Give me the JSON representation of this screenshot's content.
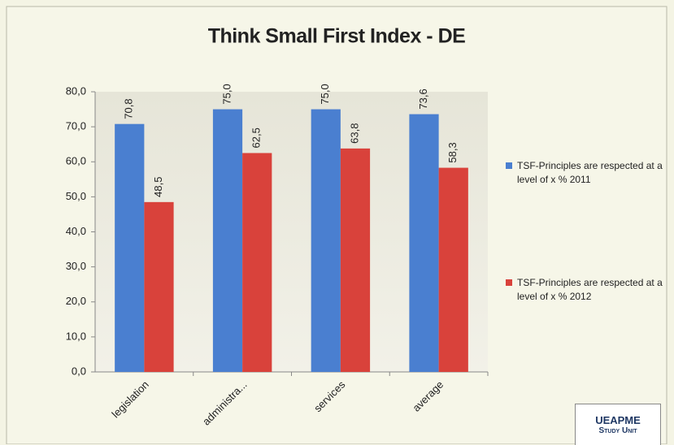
{
  "chart_data": {
    "type": "bar",
    "title": "Think Small First Index - DE",
    "categories": [
      "legislation",
      "administra...",
      "services",
      "average"
    ],
    "series": [
      {
        "name": "TSF-Principles are respected at a level of x % 2011",
        "color": "#4a7fd0",
        "values": [
          70.8,
          75.0,
          75.0,
          73.6
        ],
        "value_labels": [
          "70,8",
          "75,0",
          "75,0",
          "73,6"
        ]
      },
      {
        "name": "TSF-Principles are respected at a level of x % 2012",
        "color": "#d9423b",
        "values": [
          48.5,
          62.5,
          63.8,
          58.3
        ],
        "value_labels": [
          "48,5",
          "62,5",
          "63,8",
          "58,3"
        ]
      }
    ],
    "ylim": [
      0,
      80
    ],
    "yticks": [
      {
        "value": 0,
        "label": "0,0"
      },
      {
        "value": 10,
        "label": "10,0"
      },
      {
        "value": 20,
        "label": "20,0"
      },
      {
        "value": 30,
        "label": "30,0"
      },
      {
        "value": 40,
        "label": "40,0"
      },
      {
        "value": 50,
        "label": "50,0"
      },
      {
        "value": 60,
        "label": "60,0"
      },
      {
        "value": 70,
        "label": "70,0"
      },
      {
        "value": 80,
        "label": "80,0"
      }
    ],
    "grid": false,
    "legend": "right"
  },
  "logo": {
    "line1": "UEAPME",
    "line2": "Study Unit"
  }
}
